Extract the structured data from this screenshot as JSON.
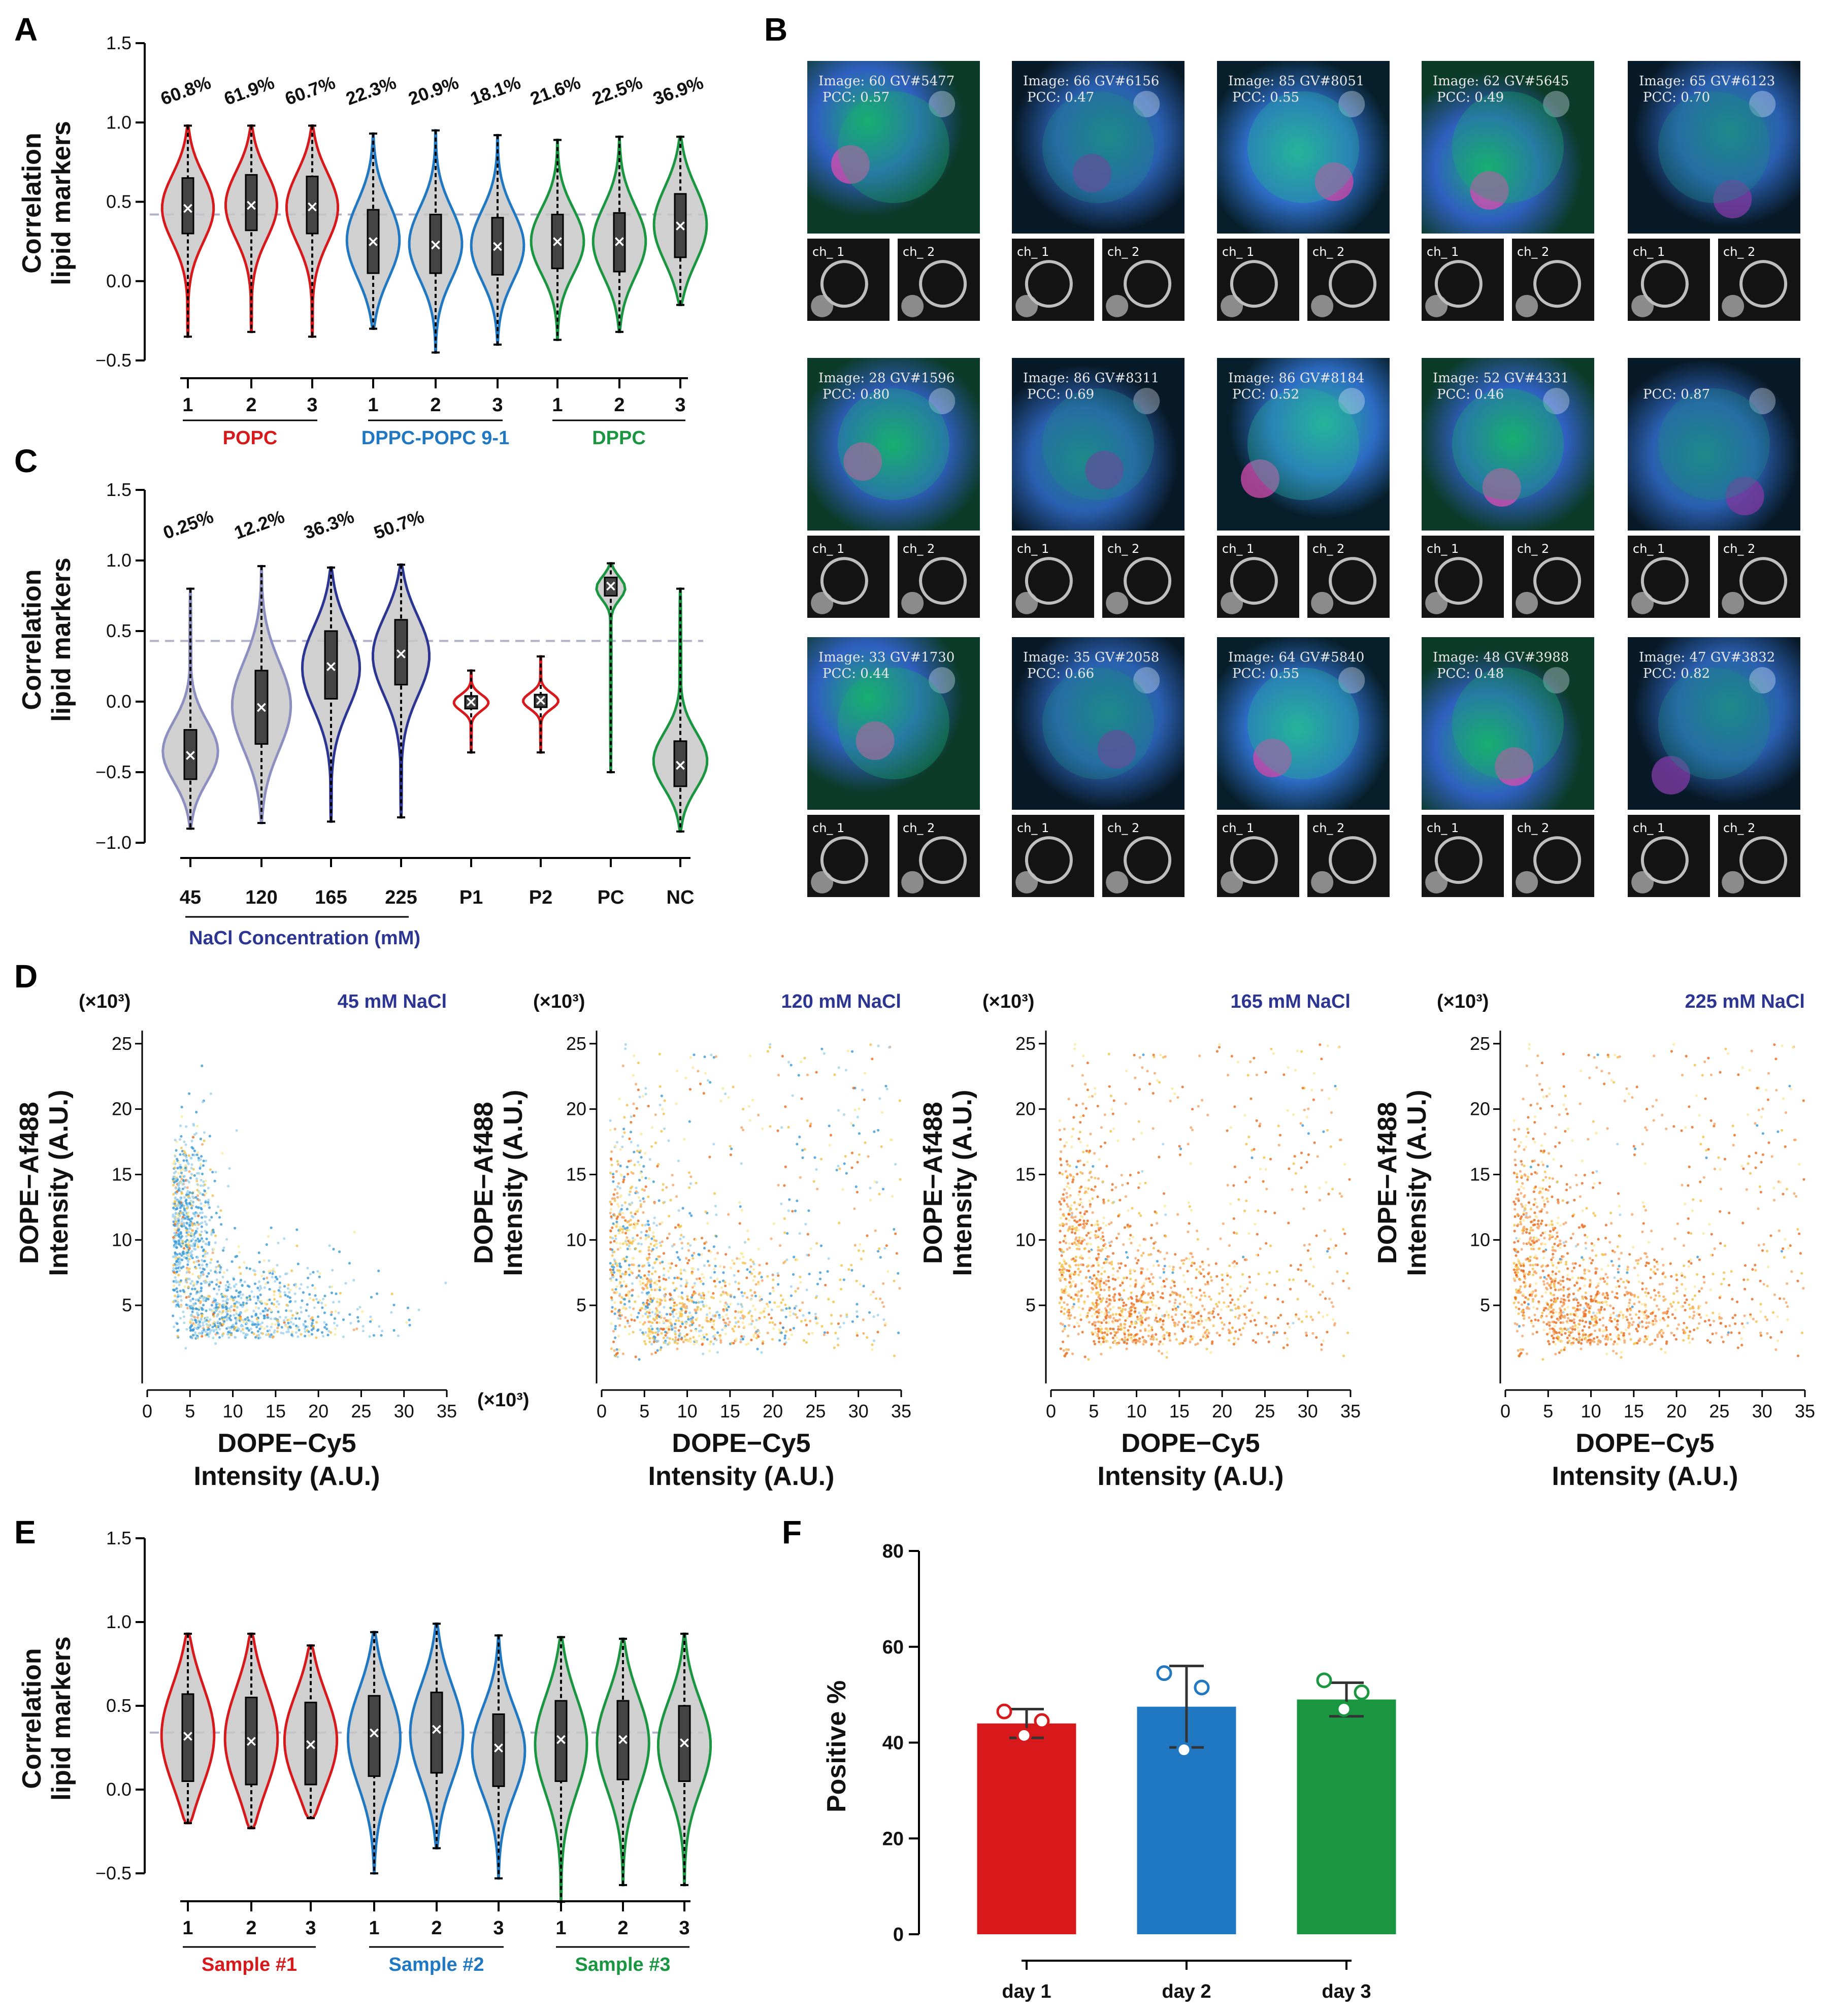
{
  "panels": {
    "A": {
      "label": "A",
      "ylabel": [
        "Correlation",
        "lipid markers"
      ]
    },
    "B": {
      "label": "B"
    },
    "C": {
      "label": "C",
      "ylabel": [
        "Correlation",
        "lipid markers"
      ]
    },
    "D": {
      "label": "D"
    },
    "E": {
      "label": "E",
      "ylabel": [
        "Correlation",
        "lipid markers"
      ]
    },
    "F": {
      "label": "F"
    }
  },
  "colors": {
    "red": "#d7191c",
    "blue": "#1f78c1",
    "green": "#1a9641",
    "navy": "#2c3592",
    "lavender": "#8c8fc0",
    "grey_fill": "#c8c8c8",
    "dash": "#b0b0c8"
  },
  "chart_data": [
    {
      "id": "A",
      "type": "violin",
      "ylim": [
        -0.5,
        1.5
      ],
      "yticks": [
        "1.5",
        "1.0",
        "0.5",
        "0.0",
        "−0.5"
      ],
      "threshold": 0.42,
      "categories": [
        "1",
        "2",
        "3",
        "1",
        "2",
        "3",
        "1",
        "2",
        "3"
      ],
      "groups": [
        {
          "name": "POPC",
          "color": "red"
        },
        {
          "name": "DPPC-POPC 9-1",
          "color": "blue"
        },
        {
          "name": "DPPC",
          "color": "green"
        }
      ],
      "percent_labels": [
        "60.8%",
        "61.9%",
        "60.7%",
        "22.3%",
        "20.9%",
        "18.1%",
        "21.6%",
        "22.5%",
        "36.9%"
      ],
      "medians": [
        0.46,
        0.48,
        0.47,
        0.25,
        0.23,
        0.22,
        0.25,
        0.25,
        0.35
      ],
      "q1": [
        0.3,
        0.32,
        0.3,
        0.05,
        0.05,
        0.04,
        0.08,
        0.06,
        0.15
      ],
      "q3": [
        0.65,
        0.67,
        0.66,
        0.45,
        0.42,
        0.4,
        0.42,
        0.43,
        0.55
      ],
      "min": [
        -0.35,
        -0.32,
        -0.35,
        -0.3,
        -0.45,
        -0.4,
        -0.37,
        -0.32,
        -0.15
      ],
      "max": [
        0.98,
        0.98,
        0.98,
        0.93,
        0.95,
        0.92,
        0.89,
        0.91,
        0.91
      ]
    },
    {
      "id": "B",
      "type": "image_grid",
      "rows": 3,
      "cols": 5,
      "tiles": [
        {
          "caption": "Image: 60 GV#5477",
          "pcc": "PCC: 0.57"
        },
        {
          "caption": "Image: 66 GV#6156",
          "pcc": "PCC: 0.47"
        },
        {
          "caption": "Image: 85 GV#8051",
          "pcc": "PCC: 0.55"
        },
        {
          "caption": "Image: 62 GV#5645",
          "pcc": "PCC: 0.49"
        },
        {
          "caption": "Image: 65 GV#6123",
          "pcc": "PCC: 0.70"
        },
        {
          "caption": "Image: 28 GV#1596",
          "pcc": "PCC: 0.80"
        },
        {
          "caption": "Image: 86 GV#8311",
          "pcc": "PCC: 0.69"
        },
        {
          "caption": "Image: 86 GV#8184",
          "pcc": "PCC: 0.52"
        },
        {
          "caption": "Image: 52 GV#4331",
          "pcc": "PCC: 0.46"
        },
        {
          "caption": "",
          "pcc": "PCC: 0.87"
        },
        {
          "caption": "Image: 33 GV#1730",
          "pcc": "PCC: 0.44"
        },
        {
          "caption": "Image: 35 GV#2058",
          "pcc": "PCC: 0.66"
        },
        {
          "caption": "Image: 64 GV#5840",
          "pcc": "PCC: 0.55"
        },
        {
          "caption": "Image: 48 GV#3988",
          "pcc": "PCC: 0.48"
        },
        {
          "caption": "Image: 47 GV#3832",
          "pcc": "PCC: 0.82"
        }
      ],
      "channel_labels": [
        "ch_ 1",
        "ch_ 2"
      ]
    },
    {
      "id": "C",
      "type": "violin",
      "ylim": [
        -1.0,
        1.5
      ],
      "yticks": [
        "1.5",
        "1.0",
        "0.5",
        "0.0",
        "−0.5",
        "−1.0"
      ],
      "threshold": 0.43,
      "categories": [
        "45",
        "120",
        "165",
        "225",
        "P1",
        "P2",
        "PC",
        "NC"
      ],
      "category_colors": [
        "navy",
        "navy",
        "navy",
        "navy",
        "red",
        "red",
        "green",
        "green"
      ],
      "violin_colors": [
        "lavender",
        "lavender",
        "navy",
        "navy",
        "red",
        "red",
        "green",
        "green"
      ],
      "percent_labels": [
        "0.25%",
        "12.2%",
        "36.3%",
        "50.7%"
      ],
      "xlabel": "NaCl Concentration (mM)",
      "medians": [
        -0.38,
        -0.04,
        0.25,
        0.34,
        0.0,
        0.01,
        0.82,
        -0.45
      ],
      "q1": [
        -0.55,
        -0.3,
        0.02,
        0.12,
        -0.05,
        -0.04,
        0.75,
        -0.6
      ],
      "q3": [
        -0.2,
        0.22,
        0.5,
        0.58,
        0.04,
        0.05,
        0.88,
        -0.28
      ],
      "min": [
        -0.9,
        -0.86,
        -0.85,
        -0.82,
        -0.36,
        -0.36,
        -0.5,
        -0.92
      ],
      "max": [
        0.8,
        0.96,
        0.95,
        0.97,
        0.22,
        0.32,
        0.98,
        0.8
      ]
    },
    {
      "id": "D",
      "type": "scatter",
      "xlabel": [
        "DOPE−Cy5",
        "Intensity (A.U.)"
      ],
      "ylabel": [
        "DOPE−Af488",
        "Intensity (A.U.)"
      ],
      "scale_note": "(×10³)",
      "xticks": [
        "0",
        "5",
        "10",
        "15",
        "20",
        "25",
        "30",
        "35"
      ],
      "yticks": [
        "25",
        "20",
        "15",
        "10",
        "5"
      ],
      "xlim": [
        0,
        35
      ],
      "ylim": [
        0,
        26
      ],
      "subplots": [
        {
          "title": "45 mM NaCl",
          "mix": [
            0.75,
            0.2,
            0.05
          ]
        },
        {
          "title": "120 mM NaCl",
          "mix": [
            0.3,
            0.45,
            0.25
          ]
        },
        {
          "title": "165 mM NaCl",
          "mix": [
            0.03,
            0.35,
            0.62
          ]
        },
        {
          "title": "225 mM NaCl",
          "mix": [
            0.03,
            0.3,
            0.67
          ]
        }
      ]
    },
    {
      "id": "E",
      "type": "violin",
      "ylim": [
        -0.5,
        1.5
      ],
      "yticks": [
        "1.5",
        "1.0",
        "0.5",
        "0.0",
        "−0.5"
      ],
      "threshold": 0.34,
      "categories": [
        "1",
        "2",
        "3",
        "1",
        "2",
        "3",
        "1",
        "2",
        "3"
      ],
      "groups": [
        {
          "name": "Sample #1",
          "color": "red"
        },
        {
          "name": "Sample #2",
          "color": "blue"
        },
        {
          "name": "Sample #3",
          "color": "green"
        }
      ],
      "medians": [
        0.32,
        0.29,
        0.27,
        0.34,
        0.36,
        0.25,
        0.3,
        0.3,
        0.28
      ],
      "q1": [
        0.05,
        0.03,
        0.03,
        0.08,
        0.1,
        0.02,
        0.05,
        0.06,
        0.05
      ],
      "q3": [
        0.57,
        0.55,
        0.52,
        0.56,
        0.58,
        0.45,
        0.53,
        0.53,
        0.5
      ],
      "min": [
        -0.2,
        -0.23,
        -0.17,
        -0.5,
        -0.35,
        -0.53,
        -0.67,
        -0.57,
        -0.57
      ],
      "max": [
        0.93,
        0.93,
        0.86,
        0.94,
        0.99,
        0.92,
        0.91,
        0.9,
        0.93
      ]
    },
    {
      "id": "F",
      "type": "bar",
      "ylabel": "Positive %",
      "ylim": [
        0,
        80
      ],
      "yticks": [
        "80",
        "60",
        "40",
        "20",
        "0"
      ],
      "categories": [
        "day 1",
        "day 2",
        "day 3"
      ],
      "bar_colors": [
        "red",
        "blue",
        "green"
      ],
      "values": [
        44,
        47.5,
        49
      ],
      "errors": [
        3,
        8.5,
        3.5
      ],
      "points": [
        [
          46.5,
          44.5,
          41.5
        ],
        [
          54.5,
          51.5,
          38.5
        ],
        [
          53,
          50.5,
          47
        ]
      ]
    }
  ]
}
